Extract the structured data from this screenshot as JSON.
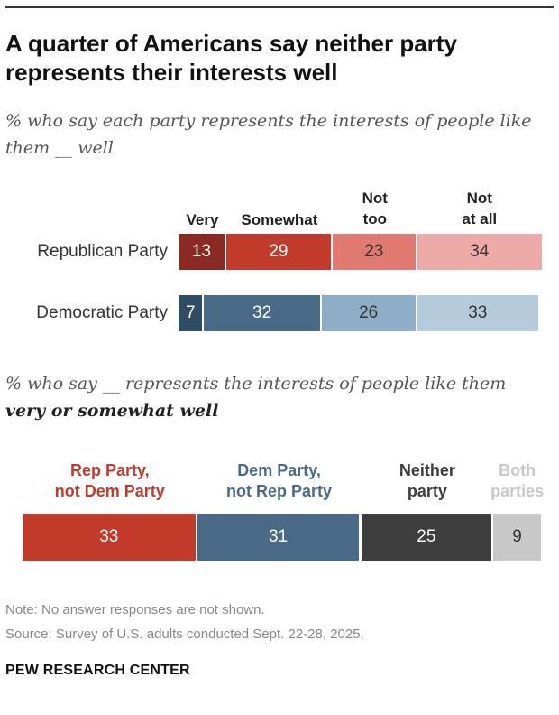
{
  "title": "A quarter of Americans say neither party represents their interests well",
  "subtitle1": "% who say each party represents the interests of people like them __ well",
  "subtitle2_prefix": "% who say __ represents the interests of people like them ",
  "subtitle2_bold": "very or somewhat well",
  "note": "Note: No answer responses are not shown.",
  "source": "Source: Survey of U.S. adults conducted Sept. 22-28, 2025.",
  "brand": "PEW RESEARCH CENTER",
  "chart_data": [
    {
      "type": "bar",
      "orientation": "horizontal-stacked",
      "categories": [
        "Republican Party",
        "Democratic Party"
      ],
      "series": [
        {
          "name": "Very",
          "values": [
            13,
            7
          ]
        },
        {
          "name": "Somewhat",
          "values": [
            29,
            32
          ]
        },
        {
          "name": "Not too",
          "values": [
            23,
            26
          ]
        },
        {
          "name": "Not at all",
          "values": [
            34,
            33
          ]
        }
      ],
      "colors": {
        "Republican Party": [
          "#8b2a22",
          "#c23b2a",
          "#e07a70",
          "#eeaaa6"
        ],
        "Democratic Party": [
          "#2f4d64",
          "#4a6b87",
          "#8eadc7",
          "#b5cbdb"
        ]
      }
    },
    {
      "type": "bar",
      "orientation": "horizontal-stacked",
      "categories": [
        ""
      ],
      "series": [
        {
          "name": "Rep Party, not Dem Party",
          "values": [
            33
          ],
          "color": "#c23b2a"
        },
        {
          "name": "Dem Party, not Rep Party",
          "values": [
            31
          ],
          "color": "#4a6b87"
        },
        {
          "name": "Neither party",
          "values": [
            25
          ],
          "color": "#3e3e3e"
        },
        {
          "name": "Both parties",
          "values": [
            9
          ],
          "color": "#c8c8c8"
        }
      ],
      "legend_label_colors": [
        "#c23b2a",
        "#4a6b87",
        "#3e3e3e",
        "#c8c8c8"
      ]
    }
  ]
}
